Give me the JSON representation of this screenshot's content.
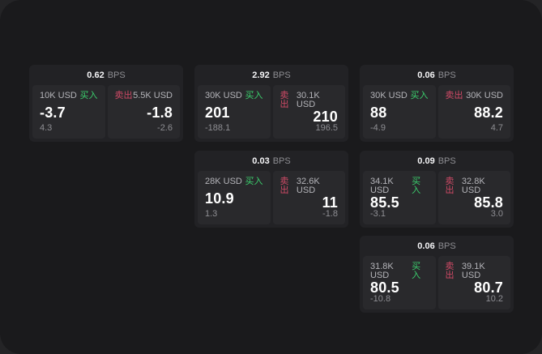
{
  "colors": {
    "backdrop": "#242426",
    "panel_bg": "#1a1a1c",
    "card_bg": "#222225",
    "cell_bg": "#29292c",
    "buy_green": "#3bcf6d",
    "sell_red": "#cf4a66",
    "text_primary": "#ffffff",
    "text_muted": "#8e8e93"
  },
  "labels": {
    "bps": "BPS",
    "buy": "买入",
    "sell": "卖出"
  },
  "cards": [
    {
      "bps": "0.62",
      "buy": {
        "amount": "10K USD",
        "value": "-3.7",
        "delta": "4.3"
      },
      "sell": {
        "amount": "5.5K USD",
        "value": "-1.8",
        "delta": "-2.6"
      }
    },
    {
      "bps": "2.92",
      "buy": {
        "amount": "30K USD",
        "value": "201",
        "delta": "-188.1"
      },
      "sell": {
        "amount": "30.1K USD",
        "value": "210",
        "delta": "196.5"
      }
    },
    {
      "bps": "0.06",
      "buy": {
        "amount": "30K USD",
        "value": "88",
        "delta": "-4.9"
      },
      "sell": {
        "amount": "30K USD",
        "value": "88.2",
        "delta": "4.7"
      }
    },
    {
      "bps": "0.03",
      "buy": {
        "amount": "28K USD",
        "value": "10.9",
        "delta": "1.3"
      },
      "sell": {
        "amount": "32.6K USD",
        "value": "11",
        "delta": "-1.8"
      }
    },
    {
      "bps": "0.09",
      "buy": {
        "amount": "34.1K USD",
        "value": "85.5",
        "delta": "-3.1"
      },
      "sell": {
        "amount": "32.8K USD",
        "value": "85.8",
        "delta": "3.0"
      }
    },
    {
      "bps": "0.06",
      "buy": {
        "amount": "31.8K USD",
        "value": "80.5",
        "delta": "-10.8"
      },
      "sell": {
        "amount": "39.1K USD",
        "value": "80.7",
        "delta": "10.2"
      }
    }
  ]
}
